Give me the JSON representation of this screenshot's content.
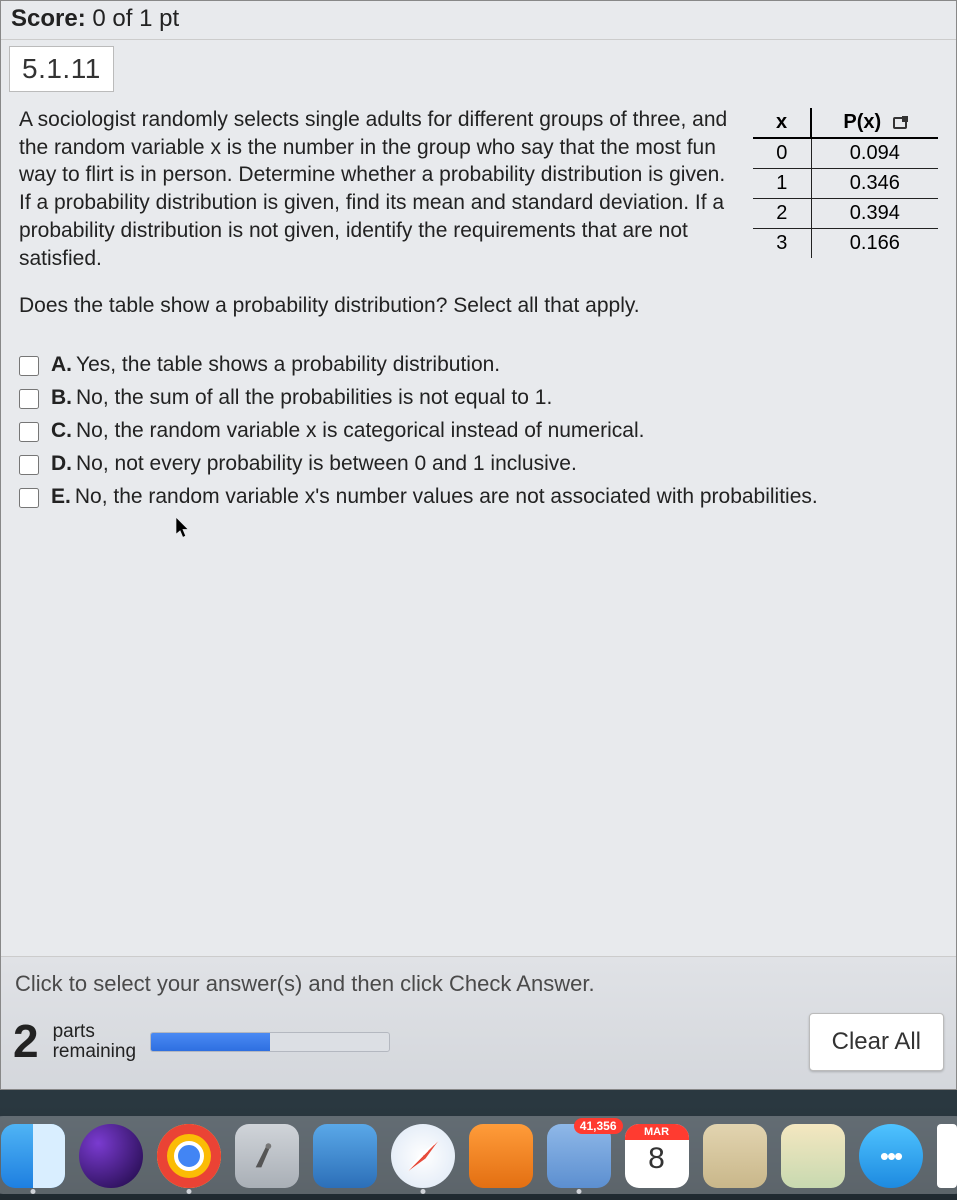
{
  "header": {
    "score_label": "Score:",
    "score_value": "0 of 1 pt",
    "question_number": "5.1.11"
  },
  "question": {
    "text": "A sociologist randomly selects single adults for different groups of three, and the random variable x is the number in the group who say that the most fun way to flirt is in person. Determine whether a probability distribution is given. If a probability distribution is given, find its mean and standard deviation. If a probability distribution is not given, identify the requirements that are not satisfied.",
    "subquestion": "Does the table show a probability distribution? Select all that apply."
  },
  "table": {
    "col_x": "x",
    "col_p": "P(x)",
    "rows": [
      {
        "x": "0",
        "p": "0.094"
      },
      {
        "x": "1",
        "p": "0.346"
      },
      {
        "x": "2",
        "p": "0.394"
      },
      {
        "x": "3",
        "p": "0.166"
      }
    ]
  },
  "choices": [
    {
      "letter": "A.",
      "text": "Yes, the table shows a probability distribution."
    },
    {
      "letter": "B.",
      "text": "No, the sum of all the probabilities is not equal to 1."
    },
    {
      "letter": "C.",
      "text": "No, the random variable x is categorical instead of numerical."
    },
    {
      "letter": "D.",
      "text": "No, not every probability is between 0 and 1 inclusive."
    },
    {
      "letter": "E.",
      "text": "No, the random variable x's number values are not associated with probabilities."
    }
  ],
  "footer": {
    "hint": "Click to select your answer(s) and then click Check Answer.",
    "parts_count": "2",
    "parts_label_top": "parts",
    "parts_label_bottom": "remaining",
    "progress_pct": 50,
    "clear_label": "Clear All"
  },
  "dock": {
    "mail_badge": "41,356",
    "cal_month": "MAR",
    "cal_day": "8",
    "strip_colors": [
      "#ff5e57",
      "#ffbd2e",
      "#28c840",
      "#3b82f6",
      "#a855f7"
    ]
  }
}
